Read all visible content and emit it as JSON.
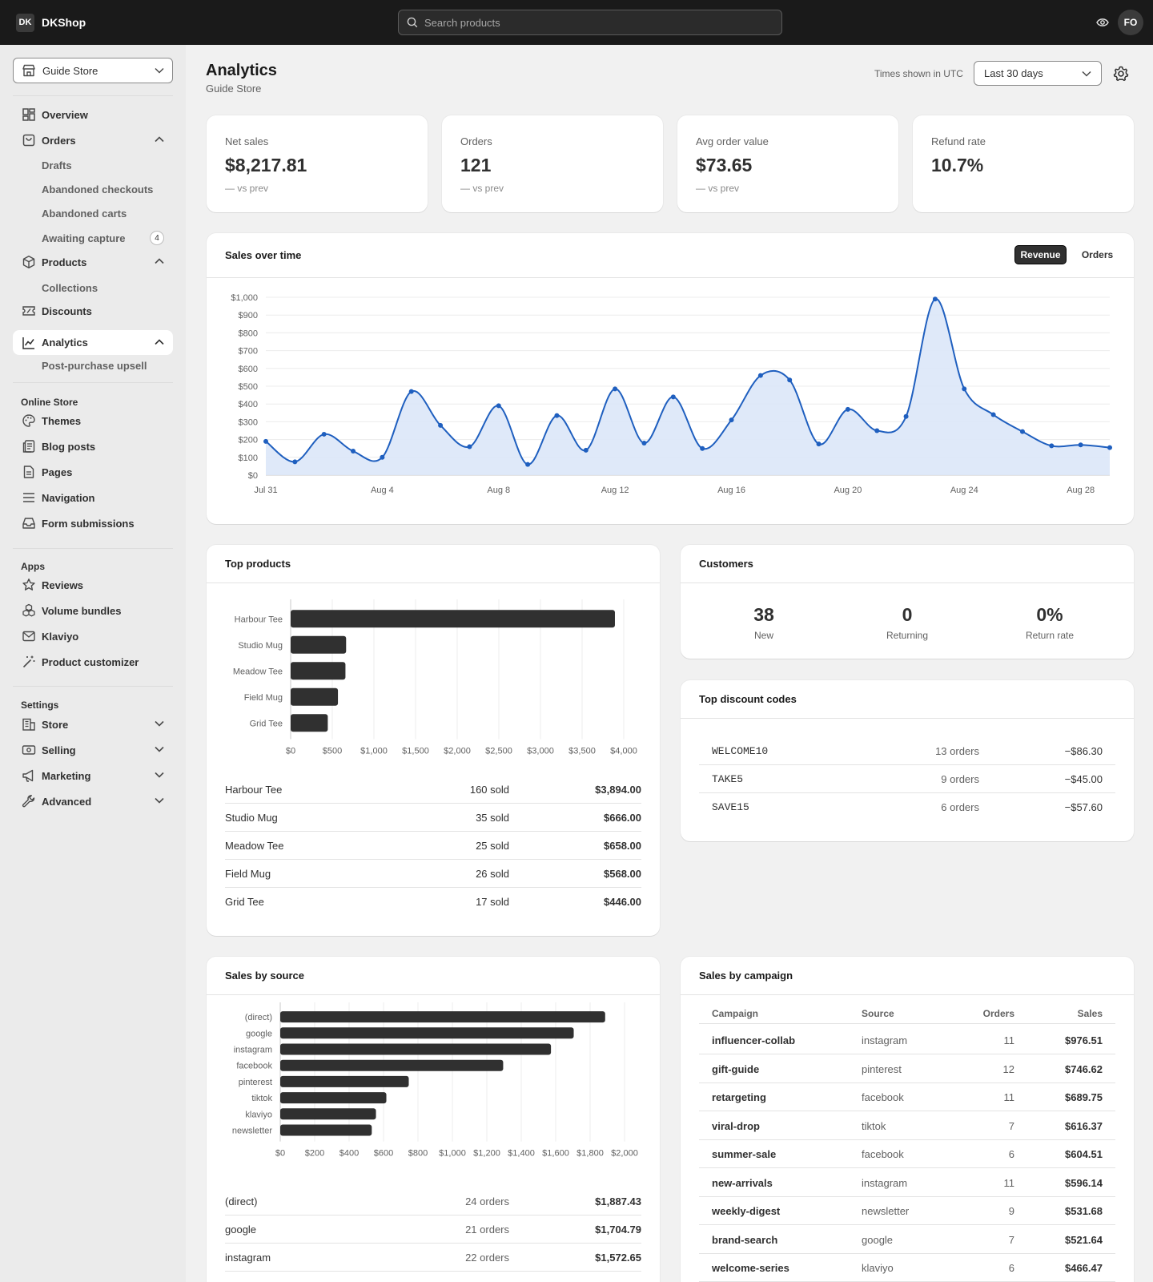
{
  "topbar": {
    "logo_badge": "DK",
    "logo_text": "DKShop",
    "search_placeholder": "Search products",
    "avatar": "FO"
  },
  "sidebar": {
    "store": "Guide Store",
    "items": {
      "overview": "Overview",
      "orders": "Orders",
      "drafts": "Drafts",
      "abandoned_checkouts": "Abandoned checkouts",
      "abandoned_carts": "Abandoned carts",
      "awaiting_capture": "Awaiting capture",
      "awaiting_capture_count": "4",
      "products": "Products",
      "collections": "Collections",
      "discounts": "Discounts",
      "analytics": "Analytics",
      "post_purchase_upsell": "Post-purchase upsell"
    },
    "online_store": {
      "label": "Online Store",
      "themes": "Themes",
      "blog_posts": "Blog posts",
      "pages": "Pages",
      "navigation": "Navigation",
      "form_submissions": "Form submissions"
    },
    "apps": {
      "label": "Apps",
      "reviews": "Reviews",
      "volume_bundles": "Volume bundles",
      "klaviyo": "Klaviyo",
      "product_customizer": "Product customizer"
    },
    "settings": {
      "label": "Settings",
      "store": "Store",
      "selling": "Selling",
      "marketing": "Marketing",
      "advanced": "Advanced"
    }
  },
  "header": {
    "title": "Analytics",
    "subtitle": "Guide Store",
    "timezone_note": "Times shown in UTC",
    "date_range": "Last 30 days"
  },
  "kpis": [
    {
      "label": "Net sales",
      "value": "$8,217.81",
      "delta": "— vs prev"
    },
    {
      "label": "Orders",
      "value": "121",
      "delta": "— vs prev"
    },
    {
      "label": "Avg order value",
      "value": "$73.65",
      "delta": "— vs prev"
    },
    {
      "label": "Refund rate",
      "value": "10.7%",
      "delta": ""
    }
  ],
  "sales_over_time": {
    "title": "Sales over time",
    "toggle_revenue": "Revenue",
    "toggle_orders": "Orders"
  },
  "top_products": {
    "title": "Top products",
    "rows": [
      {
        "name": "Harbour Tee",
        "sold": "160 sold",
        "sales": "$3,894.00"
      },
      {
        "name": "Studio Mug",
        "sold": "35 sold",
        "sales": "$666.00"
      },
      {
        "name": "Meadow Tee",
        "sold": "25 sold",
        "sales": "$658.00"
      },
      {
        "name": "Field Mug",
        "sold": "26 sold",
        "sales": "$568.00"
      },
      {
        "name": "Grid Tee",
        "sold": "17 sold",
        "sales": "$446.00"
      }
    ]
  },
  "customers": {
    "title": "Customers",
    "new_value": "38",
    "new_label": "New",
    "returning_value": "0",
    "returning_label": "Returning",
    "return_rate_value": "0%",
    "return_rate_label": "Return rate"
  },
  "discount_codes": {
    "title": "Top discount codes",
    "rows": [
      {
        "code": "WELCOME10",
        "orders": "13 orders",
        "amount": "−$86.30"
      },
      {
        "code": "TAKE5",
        "orders": "9 orders",
        "amount": "−$45.00"
      },
      {
        "code": "SAVE15",
        "orders": "6 orders",
        "amount": "−$57.60"
      }
    ]
  },
  "sales_by_source": {
    "title": "Sales by source",
    "rows": [
      {
        "source": "(direct)",
        "orders": "24 orders",
        "sales": "$1,887.43"
      },
      {
        "source": "google",
        "orders": "21 orders",
        "sales": "$1,704.79"
      },
      {
        "source": "instagram",
        "orders": "22 orders",
        "sales": "$1,572.65"
      }
    ]
  },
  "sales_by_campaign": {
    "title": "Sales by campaign",
    "headers": {
      "campaign": "Campaign",
      "source": "Source",
      "orders": "Orders",
      "sales": "Sales"
    },
    "rows": [
      {
        "campaign": "influencer-collab",
        "source": "instagram",
        "orders": "11",
        "sales": "$976.51"
      },
      {
        "campaign": "gift-guide",
        "source": "pinterest",
        "orders": "12",
        "sales": "$746.62"
      },
      {
        "campaign": "retargeting",
        "source": "facebook",
        "orders": "11",
        "sales": "$689.75"
      },
      {
        "campaign": "viral-drop",
        "source": "tiktok",
        "orders": "7",
        "sales": "$616.37"
      },
      {
        "campaign": "summer-sale",
        "source": "facebook",
        "orders": "6",
        "sales": "$604.51"
      },
      {
        "campaign": "new-arrivals",
        "source": "instagram",
        "orders": "11",
        "sales": "$596.14"
      },
      {
        "campaign": "weekly-digest",
        "source": "newsletter",
        "orders": "9",
        "sales": "$531.68"
      },
      {
        "campaign": "brand-search",
        "source": "google",
        "orders": "7",
        "sales": "$521.64"
      },
      {
        "campaign": "welcome-series",
        "source": "klaviyo",
        "orders": "6",
        "sales": "$466.47"
      }
    ]
  },
  "colors": {
    "line": "#1f5fbf",
    "area": "#dce7f8",
    "bar": "#303030",
    "topbar": "#1a1a1a"
  },
  "chart_data": [
    {
      "type": "area",
      "x": [
        "Jul 31",
        "Aug 1",
        "Aug 2",
        "Aug 3",
        "Aug 4",
        "Aug 5",
        "Aug 6",
        "Aug 7",
        "Aug 8",
        "Aug 9",
        "Aug 10",
        "Aug 11",
        "Aug 12",
        "Aug 13",
        "Aug 14",
        "Aug 15",
        "Aug 16",
        "Aug 17",
        "Aug 18",
        "Aug 19",
        "Aug 20",
        "Aug 21",
        "Aug 22",
        "Aug 23",
        "Aug 24",
        "Aug 25",
        "Aug 26",
        "Aug 27",
        "Aug 28",
        "Aug 29"
      ],
      "values": [
        190,
        75,
        230,
        135,
        100,
        470,
        280,
        160,
        390,
        60,
        335,
        140,
        485,
        180,
        440,
        150,
        310,
        560,
        535,
        175,
        370,
        250,
        330,
        990,
        485,
        340,
        245,
        165,
        170,
        155
      ],
      "xticks": [
        "Jul 31",
        "Aug 4",
        "Aug 8",
        "Aug 12",
        "Aug 16",
        "Aug 20",
        "Aug 24",
        "Aug 28"
      ],
      "yticks": [
        "$0",
        "$100",
        "$200",
        "$300",
        "$400",
        "$500",
        "$600",
        "$700",
        "$800",
        "$900",
        "$1,000"
      ],
      "ylim": [
        0,
        1000
      ],
      "grid": true
    },
    {
      "type": "bar",
      "orientation": "horizontal",
      "categories": [
        "Harbour Tee",
        "Studio Mug",
        "Meadow Tee",
        "Field Mug",
        "Grid Tee"
      ],
      "values": [
        3894,
        666,
        658,
        568,
        446
      ],
      "xticks": [
        "$0",
        "$500",
        "$1,000",
        "$1,500",
        "$2,000",
        "$2,500",
        "$3,000",
        "$3,500",
        "$4,000"
      ],
      "xlim": [
        0,
        4000
      ],
      "grid": true
    },
    {
      "type": "bar",
      "orientation": "horizontal",
      "categories": [
        "(direct)",
        "google",
        "instagram",
        "facebook",
        "pinterest",
        "tiktok",
        "klaviyo",
        "newsletter"
      ],
      "values": [
        1887.43,
        1704.79,
        1572.65,
        1295,
        746.62,
        616.37,
        556,
        531.68
      ],
      "xticks": [
        "$0",
        "$200",
        "$400",
        "$600",
        "$800",
        "$1,000",
        "$1,200",
        "$1,400",
        "$1,600",
        "$1,800",
        "$2,000"
      ],
      "xlim": [
        0,
        2000
      ],
      "grid": true
    }
  ]
}
